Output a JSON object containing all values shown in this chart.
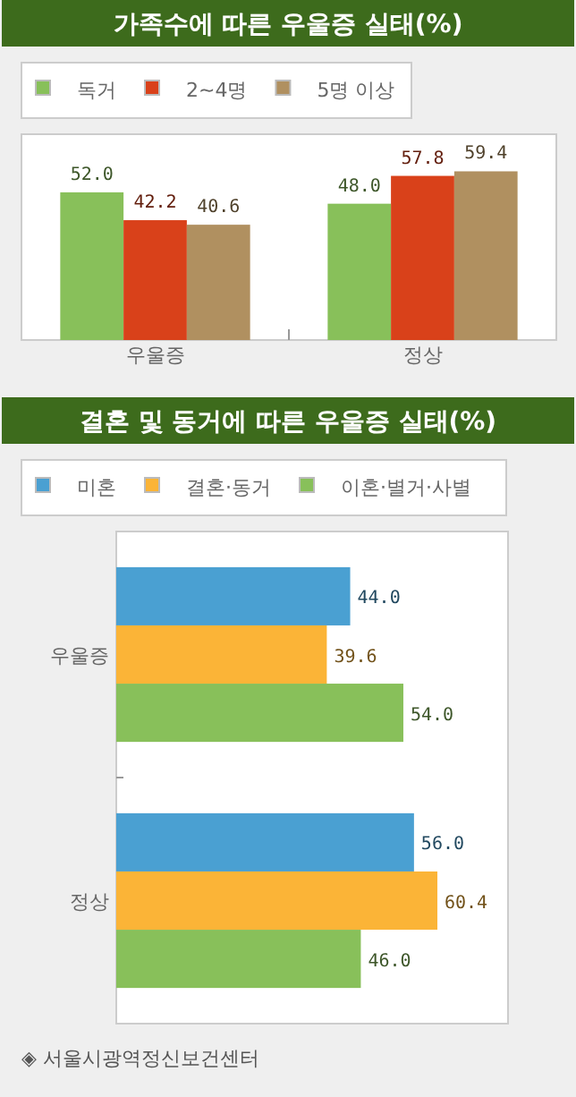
{
  "chart_data": [
    {
      "type": "bar",
      "title": "가족수에 따른 우울증 실태(%)",
      "categories": [
        "우울증",
        "정상"
      ],
      "legend": "top",
      "series": [
        {
          "name": "독거",
          "color": "#88c05a",
          "values": [
            52.0,
            48.0
          ],
          "value_labels": [
            "52.0",
            "48.0"
          ]
        },
        {
          "name": "2~4명",
          "color": "#d9411a",
          "values": [
            42.2,
            57.8
          ],
          "value_labels": [
            "42.2",
            "57.8"
          ]
        },
        {
          "name": "5명 이상",
          "color": "#b09060",
          "values": [
            40.6,
            59.4
          ],
          "value_labels": [
            "40.6",
            "59.4"
          ]
        }
      ]
    },
    {
      "type": "bar",
      "orientation": "horizontal",
      "title": "결혼 및 동거에 따른 우울증 실태(%)",
      "categories": [
        "우울증",
        "정상"
      ],
      "legend": "top",
      "series": [
        {
          "name": "미혼",
          "color": "#4aa0d2",
          "values": [
            44.0,
            56.0
          ],
          "value_labels": [
            "44.0",
            "56.0"
          ]
        },
        {
          "name": "결혼·동거",
          "color": "#fbb437",
          "values": [
            39.6,
            60.4
          ],
          "value_labels": [
            "39.6",
            "60.4"
          ]
        },
        {
          "name": "이혼·별거·사별",
          "color": "#88c05a",
          "values": [
            54.0,
            46.0
          ],
          "value_labels": [
            "54.0",
            "46.0"
          ]
        }
      ],
      "annotations": [
        "◈ 서울시광역정신보건센터"
      ]
    }
  ]
}
